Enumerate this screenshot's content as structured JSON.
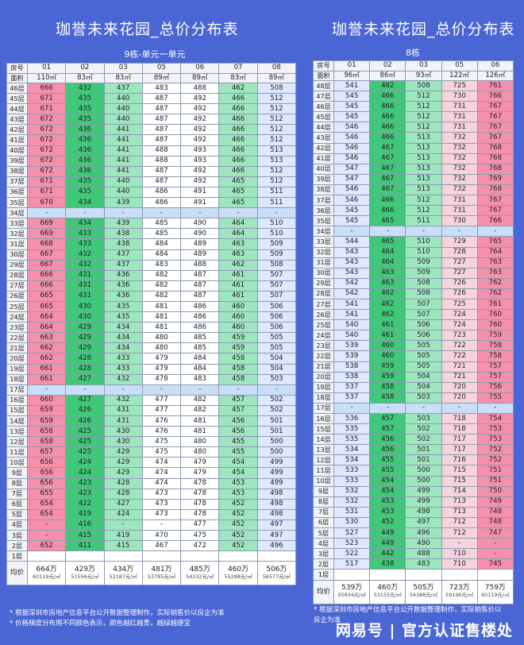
{
  "left": {
    "title": "珈誉未来花园_总价分布表",
    "subtitle": "9栋-单元一单元",
    "row_label_header": "房号",
    "area_label": "面积",
    "units": [
      "01",
      "02",
      "03",
      "05",
      "06",
      "07",
      "08"
    ],
    "areas": [
      "110㎡",
      "83㎡",
      "83㎡",
      "89㎡",
      "89㎡",
      "83㎡",
      "89㎡"
    ],
    "col_colors": [
      "pink",
      "green",
      "lgreen",
      "white",
      "white",
      "lgreen",
      "lblue"
    ],
    "rows": [
      [
        "46层",
        "666",
        "432",
        "437",
        "483",
        "488",
        "462",
        "508"
      ],
      [
        "45层",
        "671",
        "435",
        "440",
        "487",
        "492",
        "466",
        "512"
      ],
      [
        "44层",
        "671",
        "435",
        "440",
        "487",
        "492",
        "466",
        "512"
      ],
      [
        "43层",
        "672",
        "435",
        "440",
        "487",
        "492",
        "466",
        "512"
      ],
      [
        "42层",
        "672",
        "436",
        "441",
        "487",
        "492",
        "466",
        "512"
      ],
      [
        "41层",
        "672",
        "436",
        "441",
        "487",
        "492",
        "466",
        "512"
      ],
      [
        "40层",
        "672",
        "436",
        "441",
        "488",
        "493",
        "466",
        "513"
      ],
      [
        "39层",
        "672",
        "436",
        "441",
        "488",
        "493",
        "466",
        "513"
      ],
      [
        "38层",
        "672",
        "436",
        "441",
        "487",
        "492",
        "466",
        "512"
      ],
      [
        "37层",
        "671",
        "435",
        "440",
        "487",
        "492",
        "465",
        "512"
      ],
      [
        "36层",
        "671",
        "435",
        "440",
        "486",
        "491",
        "465",
        "511"
      ],
      [
        "35层",
        "670",
        "434",
        "439",
        "486",
        "491",
        "465",
        "511"
      ],
      [
        "34层",
        "-",
        "-",
        "-",
        "-",
        "-",
        "-",
        "-"
      ],
      [
        "33层",
        "669",
        "434",
        "439",
        "485",
        "490",
        "464",
        "510"
      ],
      [
        "32层",
        "669",
        "433",
        "438",
        "485",
        "490",
        "464",
        "510"
      ],
      [
        "31层",
        "668",
        "433",
        "438",
        "484",
        "489",
        "463",
        "509"
      ],
      [
        "30层",
        "667",
        "432",
        "437",
        "484",
        "489",
        "463",
        "509"
      ],
      [
        "29层",
        "667",
        "432",
        "437",
        "483",
        "488",
        "462",
        "508"
      ],
      [
        "28层",
        "666",
        "431",
        "436",
        "482",
        "487",
        "461",
        "507"
      ],
      [
        "27层",
        "666",
        "431",
        "436",
        "482",
        "487",
        "461",
        "507"
      ],
      [
        "26层",
        "665",
        "431",
        "436",
        "482",
        "487",
        "461",
        "507"
      ],
      [
        "25层",
        "665",
        "430",
        "435",
        "481",
        "486",
        "460",
        "506"
      ],
      [
        "24层",
        "664",
        "430",
        "435",
        "481",
        "486",
        "460",
        "506"
      ],
      [
        "23层",
        "664",
        "429",
        "434",
        "481",
        "486",
        "460",
        "506"
      ],
      [
        "22层",
        "663",
        "429",
        "434",
        "480",
        "485",
        "459",
        "505"
      ],
      [
        "21层",
        "662",
        "429",
        "434",
        "480",
        "485",
        "459",
        "505"
      ],
      [
        "20层",
        "662",
        "428",
        "433",
        "479",
        "484",
        "458",
        "504"
      ],
      [
        "19层",
        "661",
        "428",
        "433",
        "479",
        "484",
        "458",
        "504"
      ],
      [
        "18层",
        "661",
        "427",
        "432",
        "478",
        "483",
        "458",
        "503"
      ],
      [
        "17层",
        "-",
        "-",
        "-",
        "-",
        "-",
        "-",
        "-"
      ],
      [
        "16层",
        "660",
        "427",
        "432",
        "477",
        "482",
        "457",
        "502"
      ],
      [
        "15层",
        "659",
        "426",
        "431",
        "477",
        "482",
        "457",
        "502"
      ],
      [
        "14层",
        "659",
        "426",
        "431",
        "476",
        "481",
        "456",
        "501"
      ],
      [
        "13层",
        "658",
        "425",
        "430",
        "476",
        "481",
        "456",
        "501"
      ],
      [
        "12层",
        "658",
        "425",
        "430",
        "475",
        "480",
        "455",
        "500"
      ],
      [
        "11层",
        "657",
        "425",
        "429",
        "475",
        "480",
        "455",
        "500"
      ],
      [
        "10层",
        "656",
        "424",
        "429",
        "474",
        "479",
        "454",
        "499"
      ],
      [
        "9层",
        "656",
        "424",
        "429",
        "474",
        "479",
        "454",
        "499"
      ],
      [
        "8层",
        "656",
        "423",
        "428",
        "474",
        "478",
        "453",
        "499"
      ],
      [
        "7层",
        "655",
        "423",
        "428",
        "473",
        "478",
        "453",
        "498"
      ],
      [
        "6层",
        "654",
        "422",
        "427",
        "473",
        "478",
        "452",
        "498"
      ],
      [
        "5层",
        "654",
        "419",
        "424",
        "473",
        "478",
        "452",
        "498"
      ],
      [
        "4层",
        "-",
        "416",
        "-",
        "-",
        "477",
        "452",
        "497"
      ],
      [
        "3层",
        "-",
        "415",
        "419",
        "470",
        "475",
        "452",
        "497"
      ],
      [
        "2层",
        "652",
        "411",
        "415",
        "467",
        "472",
        "452",
        "496"
      ],
      [
        "1层",
        "",
        "",
        "",
        "",
        "",
        "",
        ""
      ]
    ],
    "avg_label": "均价",
    "avg_prices": [
      "664万",
      "429万",
      "434万",
      "481万",
      "485万",
      "460万",
      "506万"
    ],
    "avg_units": [
      "60119元/㎡",
      "51556元/㎡",
      "52187元/㎡",
      "53785元/㎡",
      "54332元/㎡",
      "55288元/㎡",
      "56577元/㎡"
    ]
  },
  "right": {
    "title": "珈誉未来花园_总价分布表",
    "subtitle": "8栋",
    "row_label_header": "房号",
    "area_label": "面积",
    "units": [
      "01",
      "02",
      "03",
      "05",
      "06"
    ],
    "areas": [
      "96㎡",
      "86㎡",
      "93㎡",
      "122㎡",
      "126㎡"
    ],
    "col_colors": [
      "lblue",
      "green",
      "lgreen",
      "lpink",
      "pink"
    ],
    "rows": [
      [
        "48层",
        "541",
        "462",
        "508",
        "725",
        "761"
      ],
      [
        "47层",
        "545",
        "466",
        "512",
        "730",
        "766"
      ],
      [
        "46层",
        "545",
        "466",
        "512",
        "731",
        "767"
      ],
      [
        "45层",
        "545",
        "466",
        "512",
        "731",
        "767"
      ],
      [
        "44层",
        "546",
        "466",
        "512",
        "731",
        "767"
      ],
      [
        "43层",
        "546",
        "466",
        "513",
        "732",
        "767"
      ],
      [
        "42层",
        "546",
        "467",
        "513",
        "732",
        "768"
      ],
      [
        "41层",
        "546",
        "467",
        "513",
        "732",
        "768"
      ],
      [
        "40层",
        "547",
        "467",
        "513",
        "732",
        "768"
      ],
      [
        "39层",
        "547",
        "467",
        "513",
        "732",
        "769"
      ],
      [
        "38层",
        "546",
        "467",
        "513",
        "732",
        "768"
      ],
      [
        "37层",
        "546",
        "466",
        "512",
        "731",
        "767"
      ],
      [
        "36层",
        "545",
        "466",
        "512",
        "731",
        "767"
      ],
      [
        "35层",
        "545",
        "465",
        "511",
        "730",
        "766"
      ],
      [
        "34层",
        "-",
        "-",
        "-",
        "-",
        "-"
      ],
      [
        "33层",
        "544",
        "465",
        "510",
        "729",
        "765"
      ],
      [
        "32层",
        "543",
        "464",
        "510",
        "728",
        "764"
      ],
      [
        "31层",
        "543",
        "464",
        "509",
        "727",
        "763"
      ],
      [
        "30层",
        "543",
        "463",
        "509",
        "727",
        "763"
      ],
      [
        "29层",
        "542",
        "463",
        "508",
        "726",
        "762"
      ],
      [
        "28层",
        "542",
        "462",
        "508",
        "726",
        "762"
      ],
      [
        "27层",
        "541",
        "462",
        "507",
        "725",
        "761"
      ],
      [
        "26层",
        "541",
        "462",
        "507",
        "724",
        "760"
      ],
      [
        "25层",
        "540",
        "461",
        "506",
        "724",
        "760"
      ],
      [
        "24层",
        "540",
        "461",
        "506",
        "723",
        "759"
      ],
      [
        "23层",
        "539",
        "460",
        "505",
        "722",
        "758"
      ],
      [
        "22层",
        "539",
        "460",
        "505",
        "722",
        "758"
      ],
      [
        "21层",
        "538",
        "459",
        "505",
        "721",
        "757"
      ],
      [
        "20层",
        "538",
        "459",
        "504",
        "721",
        "757"
      ],
      [
        "19层",
        "537",
        "458",
        "504",
        "720",
        "756"
      ],
      [
        "18层",
        "537",
        "458",
        "503",
        "720",
        "755"
      ],
      [
        "17层",
        "-",
        "-",
        "-",
        "-",
        "-"
      ],
      [
        "16层",
        "536",
        "457",
        "503",
        "718",
        "754"
      ],
      [
        "15层",
        "535",
        "457",
        "502",
        "718",
        "753"
      ],
      [
        "14层",
        "535",
        "456",
        "502",
        "717",
        "753"
      ],
      [
        "13层",
        "534",
        "456",
        "501",
        "717",
        "752"
      ],
      [
        "12层",
        "534",
        "455",
        "501",
        "716",
        "752"
      ],
      [
        "11层",
        "533",
        "455",
        "500",
        "715",
        "751"
      ],
      [
        "10层",
        "533",
        "454",
        "500",
        "715",
        "751"
      ],
      [
        "9层",
        "532",
        "454",
        "499",
        "714",
        "750"
      ],
      [
        "8层",
        "532",
        "453",
        "499",
        "713",
        "749"
      ],
      [
        "7层",
        "531",
        "453",
        "498",
        "713",
        "748"
      ],
      [
        "6层",
        "530",
        "452",
        "497",
        "712",
        "748"
      ],
      [
        "5层",
        "527",
        "449",
        "496",
        "712",
        "747"
      ],
      [
        "4层",
        "523",
        "449",
        "490",
        "-",
        "-"
      ],
      [
        "3层",
        "522",
        "442",
        "488",
        "710",
        "-"
      ],
      [
        "2层",
        "517",
        "438",
        "483",
        "710",
        "745"
      ],
      [
        "1层",
        "",
        "",
        "",
        "",
        ""
      ]
    ],
    "avg_label": "均价",
    "avg_prices": [
      "539万",
      "460万",
      "505万",
      "723万",
      "759万"
    ],
    "avg_units": [
      "55834元/㎡",
      "53155元/㎡",
      "54388元/㎡",
      "59196元/㎡",
      "60119元/㎡"
    ]
  },
  "notes_left": [
    "* 根据深圳市房地产信息平台公开数据整理制作，实际销售价以房企为准",
    "* 价格梯度分布用不同颜色表示，颜色越红越贵，越绿越便宜"
  ],
  "notes_right": [
    "* 根据深圳市房地产信息平台公开数据整理制作，实际销售价以",
    "房企为准"
  ],
  "watermark": "网易号 | 官方认证售楼处"
}
